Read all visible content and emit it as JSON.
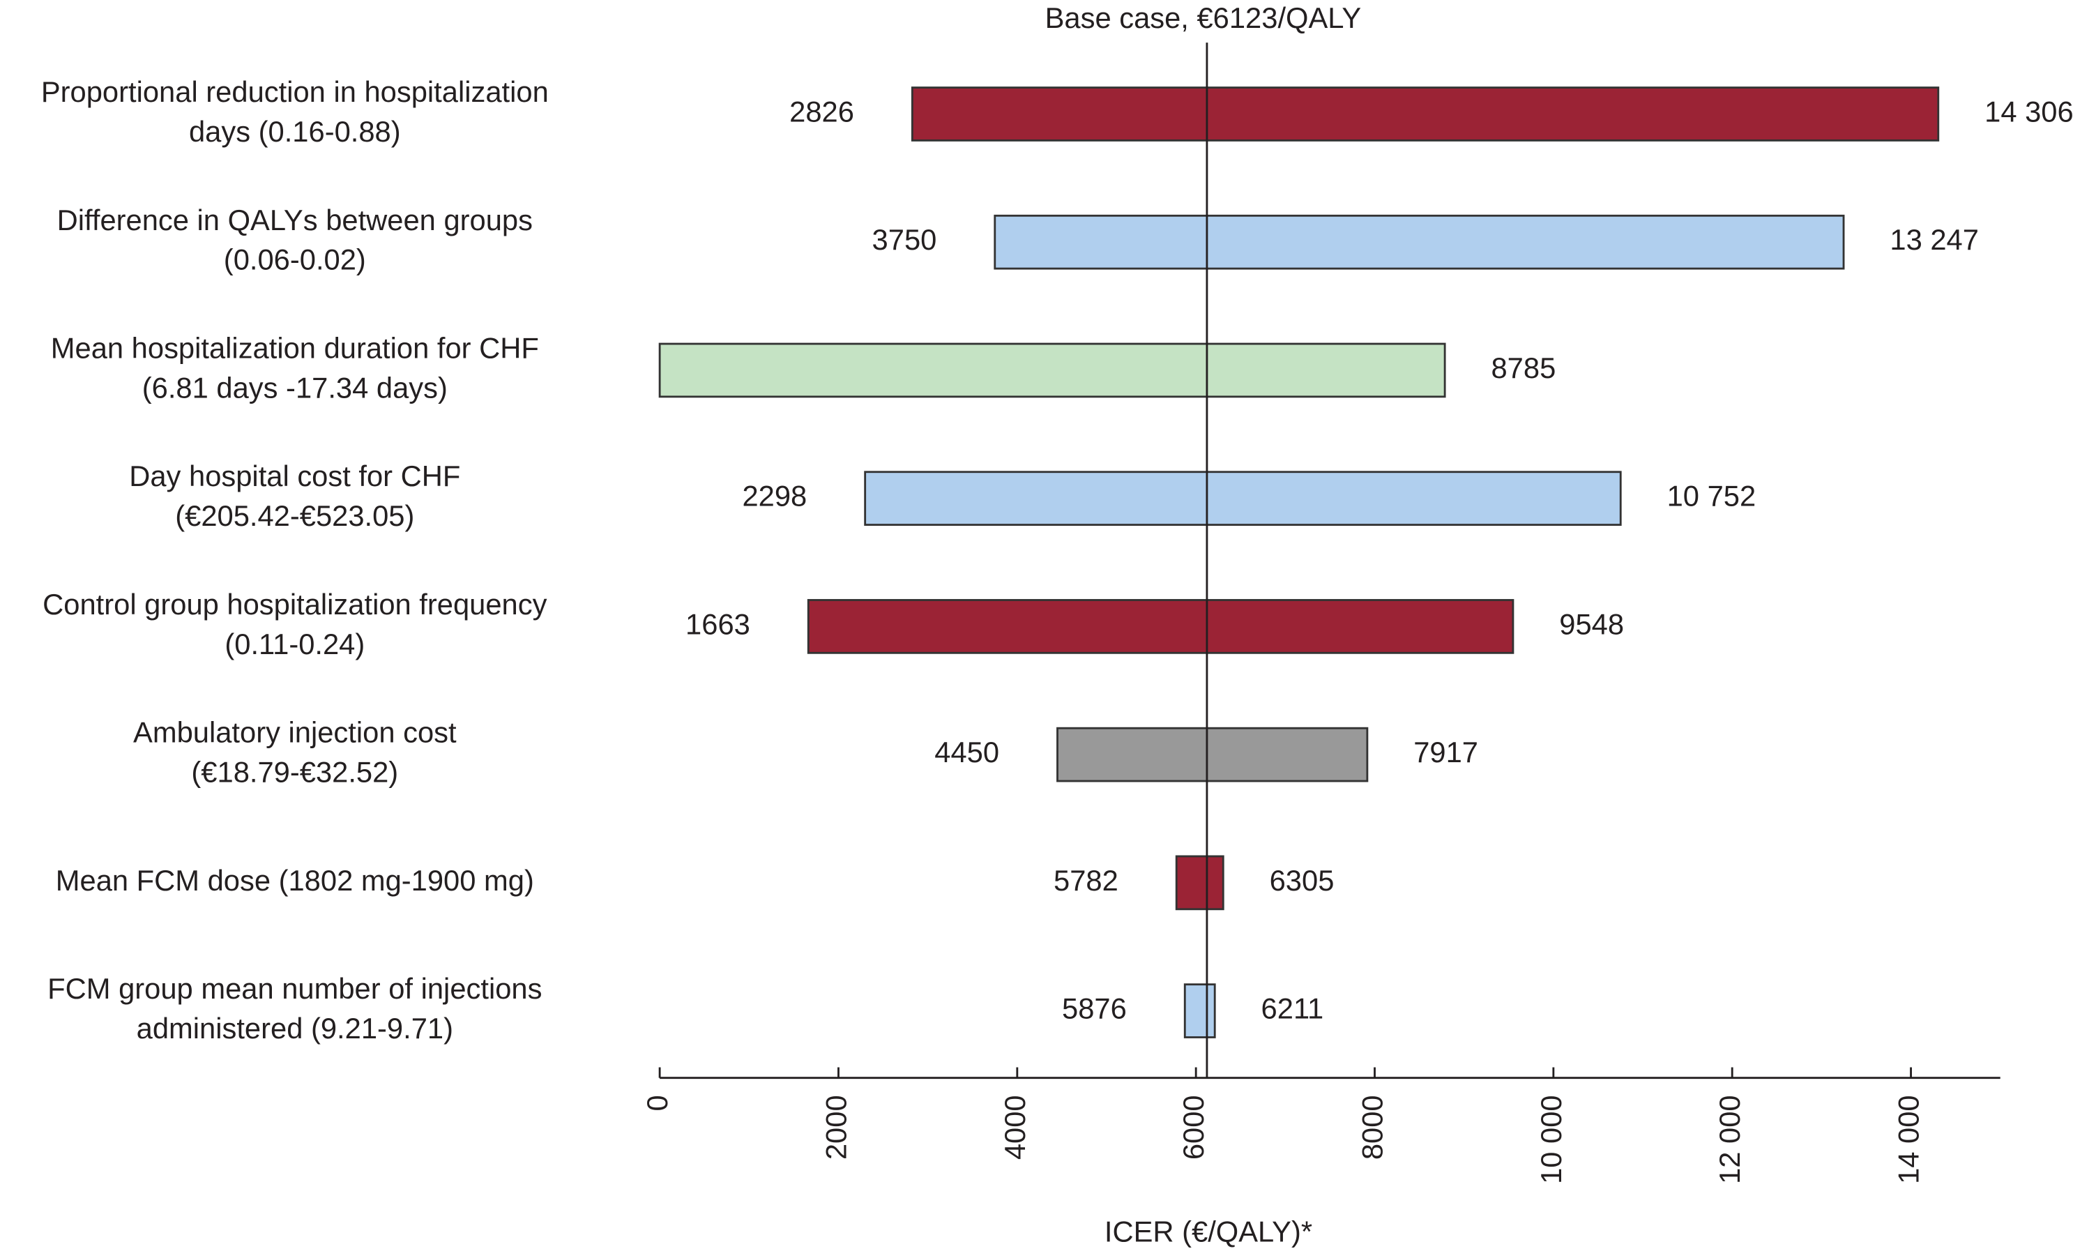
{
  "chart_data": {
    "type": "tornado",
    "title": "Base case, €6123/QALY",
    "base_case": 6123,
    "x_label": "ICER (€/QALY)*",
    "categories": [
      [
        "Proportional reduction in hospitalization",
        "days (0.16-0.88)"
      ],
      [
        "Difference in QALYs between groups",
        "(0.06-0.02)"
      ],
      [
        "Mean hospitalization duration for CHF",
        "(6.81 days -17.34 days)"
      ],
      [
        "Day hospital cost for CHF",
        "(€205.42-€523.05)"
      ],
      [
        "Control group hospitalization frequency",
        "(0.11-0.24)"
      ],
      [
        "Ambulatory injection cost",
        "(€18.79-€32.52)"
      ],
      [
        "Mean FCM dose (1802 mg-1900 mg)"
      ],
      [
        "FCM group mean number of injections",
        "administered (9.21-9.71)"
      ]
    ],
    "low": [
      2826,
      3750,
      0,
      2298,
      1663,
      4450,
      5782,
      5876
    ],
    "low_labels": [
      "2826",
      "3750",
      null,
      "2298",
      "1663",
      "4450",
      "5782",
      "5876"
    ],
    "high": [
      14306,
      13247,
      8785,
      10752,
      9548,
      7917,
      6305,
      6211
    ],
    "high_labels": [
      "14 306",
      "13 247",
      "8785",
      "10 752",
      "9548",
      "7917",
      "6305",
      "6211"
    ],
    "colors": [
      "#9b2335",
      "#b0cfee",
      "#c5e3c4",
      "#b0cfee",
      "#9b2335",
      "#999999",
      "#9b2335",
      "#b0cfee"
    ],
    "xlim": [
      0,
      15000
    ],
    "xticks": [
      0,
      2000,
      4000,
      6000,
      8000,
      {
        "value": 10000,
        "label": "10 000"
      },
      {
        "value": 12000,
        "label": "12 000"
      },
      {
        "value": 14000,
        "label": "14 000"
      }
    ]
  }
}
